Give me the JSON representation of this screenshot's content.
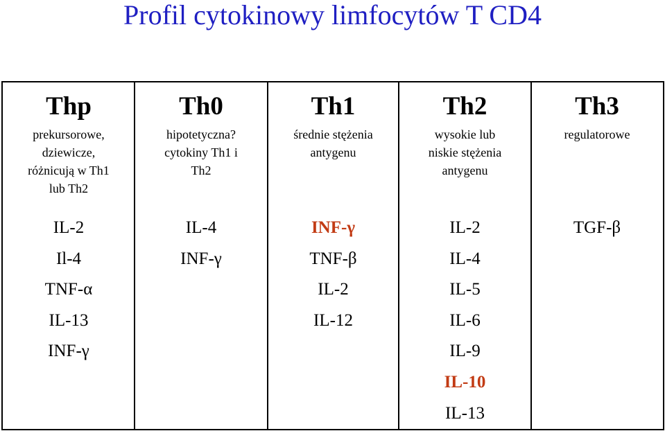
{
  "title": "Profil cytokinowy limfocytów T CD4",
  "table": {
    "columns": [
      {
        "header": "Thp",
        "description": [
          "prekursorowe,",
          "dziewicze,",
          "różnicują w Th1",
          "lub Th2"
        ],
        "cytokines": [
          {
            "text": "IL-2",
            "highlight": false
          },
          {
            "text": "Il-4",
            "highlight": false
          },
          {
            "text": "TNF-α",
            "highlight": false
          },
          {
            "text": "IL-13",
            "highlight": false
          },
          {
            "text": "INF-γ",
            "highlight": false
          }
        ]
      },
      {
        "header": "Th0",
        "description": [
          "hipotetyczna?",
          "cytokiny Th1 i",
          "Th2"
        ],
        "cytokines": [
          {
            "text": "IL-4",
            "highlight": false
          },
          {
            "text": "INF-γ",
            "highlight": false
          }
        ]
      },
      {
        "header": "Th1",
        "description": [
          "średnie stężenia",
          "antygenu"
        ],
        "cytokines": [
          {
            "text": "INF-γ",
            "highlight": true
          },
          {
            "text": "TNF-β",
            "highlight": false
          },
          {
            "text": "IL-2",
            "highlight": false
          },
          {
            "text": "IL-12",
            "highlight": false
          }
        ]
      },
      {
        "header": "Th2",
        "description": [
          "wysokie lub",
          "niskie stężenia",
          "antygenu"
        ],
        "cytokines": [
          {
            "text": "IL-2",
            "highlight": false
          },
          {
            "text": "IL-4",
            "highlight": false
          },
          {
            "text": "IL-5",
            "highlight": false
          },
          {
            "text": "IL-6",
            "highlight": false
          },
          {
            "text": "IL-9",
            "highlight": false
          },
          {
            "text": "IL-10",
            "highlight": true
          },
          {
            "text": "IL-13",
            "highlight": false
          }
        ]
      },
      {
        "header": "Th3",
        "description": [
          "regulatorowe"
        ],
        "cytokines": [
          {
            "text": "TGF-β",
            "highlight": false
          }
        ]
      }
    ]
  }
}
